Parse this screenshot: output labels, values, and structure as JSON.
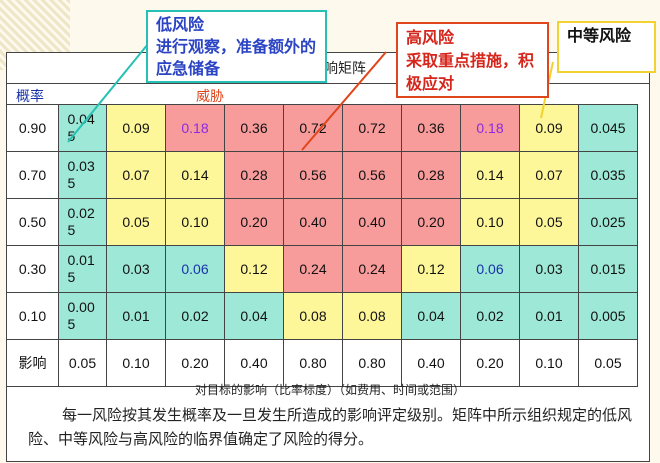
{
  "matrix": {
    "title": "影响矩阵",
    "probability_label": "概率",
    "threat_label": "威胁",
    "impact_label": "影响",
    "rows": [
      {
        "p": "0.90",
        "cells": [
          "0.045",
          "0.09",
          "0.18",
          "0.36",
          "0.72",
          "0.72",
          "0.36",
          "0.18",
          "0.09",
          "0.045"
        ]
      },
      {
        "p": "0.70",
        "cells": [
          "0.035",
          "0.07",
          "0.14",
          "0.28",
          "0.56",
          "0.56",
          "0.28",
          "0.14",
          "0.07",
          "0.035"
        ]
      },
      {
        "p": "0.50",
        "cells": [
          "0.025",
          "0.05",
          "0.10",
          "0.20",
          "0.40",
          "0.40",
          "0.20",
          "0.10",
          "0.05",
          "0.025"
        ]
      },
      {
        "p": "0.30",
        "cells": [
          "0.015",
          "0.03",
          "0.06",
          "0.12",
          "0.24",
          "0.24",
          "0.12",
          "0.06",
          "0.03",
          "0.015"
        ]
      },
      {
        "p": "0.10",
        "cells": [
          "0.005",
          "0.01",
          "0.02",
          "0.04",
          "0.08",
          "0.08",
          "0.04",
          "0.02",
          "0.01",
          "0.005"
        ]
      }
    ],
    "impacts": [
      "0.05",
      "0.10",
      "0.20",
      "0.40",
      "0.80",
      "0.80",
      "0.40",
      "0.20",
      "0.10",
      "0.05"
    ],
    "axis_caption": "对目标的影响（比率标度）（如费用、时间或范围）"
  },
  "note": "每一风险按其发生概率及一旦发生所造成的影响评定级别。矩阵中所示组织规定的低风险、中等风险与高风险的临界值确定了风险的得分。",
  "callouts": {
    "low": {
      "title": "低风险",
      "text": "进行观察，准备额外的应急储备"
    },
    "high": {
      "title": "高风险",
      "text": "采取重点措施，积极应对"
    },
    "medium": {
      "title": "中等风险"
    }
  },
  "colors": {
    "low": "#9ee8d8",
    "medium": "#fdf79a",
    "high": "#f79b9b",
    "blue_text": "#1a33a8",
    "purple_text": "#8a2be2"
  }
}
